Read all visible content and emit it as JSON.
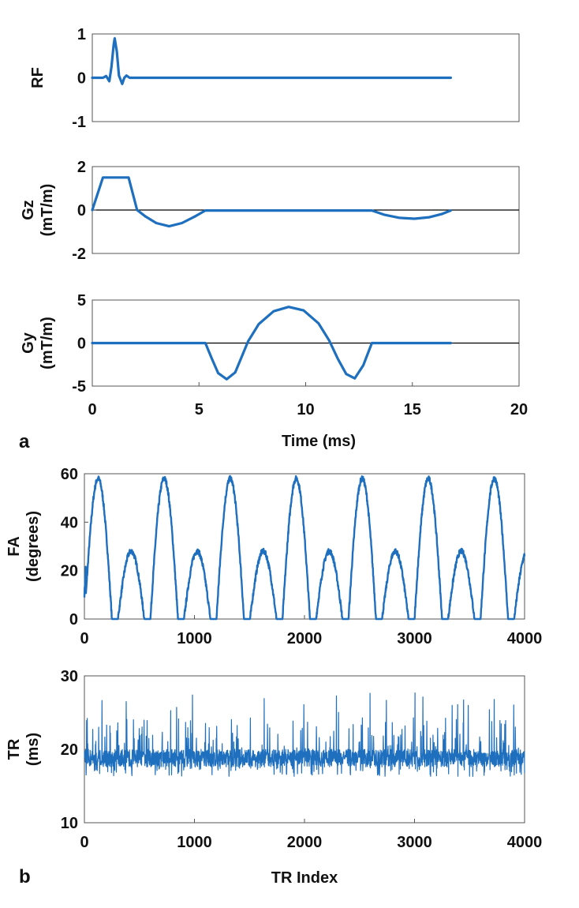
{
  "colors": {
    "series": "#1f6fbf",
    "axis": "#222222",
    "zero_line": "#000000"
  },
  "panel_labels": {
    "a": "a",
    "b": "b"
  },
  "chart_data": [
    {
      "id": "rf",
      "type": "line",
      "title": "",
      "ylabel": [
        "RF"
      ],
      "xlabel": "",
      "xlim": [
        0,
        20
      ],
      "ylim": [
        -1,
        1
      ],
      "yticks": [
        1,
        0,
        -1
      ],
      "ytick_labels": [
        "1",
        "0",
        "-1"
      ],
      "xtick_labels": [],
      "zero_line": false,
      "series": [
        {
          "name": "RF",
          "x": [
            0,
            0.5,
            0.65,
            0.8,
            0.9,
            1.0,
            1.05,
            1.15,
            1.25,
            1.4,
            1.5,
            1.6,
            1.75,
            1.9,
            16.8
          ],
          "y": [
            0,
            0,
            0.04,
            -0.08,
            0.25,
            0.75,
            0.9,
            0.6,
            0.05,
            -0.14,
            0.0,
            0.05,
            0.0,
            0.0,
            0.0
          ]
        }
      ]
    },
    {
      "id": "gz",
      "type": "line",
      "title": "",
      "ylabel": [
        "Gz",
        "(mT/m)"
      ],
      "xlabel": "",
      "xlim": [
        0,
        20
      ],
      "ylim": [
        -2,
        2
      ],
      "yticks": [
        2,
        0,
        -2
      ],
      "ytick_labels": [
        "2",
        "0",
        "-2"
      ],
      "xtick_labels": [],
      "zero_line": true,
      "series": [
        {
          "name": "Gz",
          "x": [
            0,
            0.5,
            1.7,
            2.1,
            2.5,
            3.0,
            3.6,
            4.2,
            4.8,
            5.3,
            13.1,
            13.7,
            14.4,
            15.1,
            15.8,
            16.4,
            16.8
          ],
          "y": [
            0,
            1.5,
            1.5,
            0,
            -0.3,
            -0.6,
            -0.75,
            -0.6,
            -0.3,
            -0.02,
            -0.02,
            -0.22,
            -0.36,
            -0.4,
            -0.33,
            -0.18,
            -0.02
          ]
        }
      ]
    },
    {
      "id": "gy",
      "type": "line",
      "title": "",
      "ylabel": [
        "Gy",
        "(mT/m)"
      ],
      "xlabel": "",
      "xlim": [
        0,
        20
      ],
      "ylim": [
        -5,
        5
      ],
      "yticks": [
        5,
        0,
        -5
      ],
      "ytick_labels": [
        "5",
        "0",
        "-5"
      ],
      "xticks": [
        0,
        5,
        10,
        15,
        20
      ],
      "xtick_labels": [
        "0",
        "5",
        "10",
        "15",
        "20"
      ],
      "zero_line": true,
      "series": [
        {
          "name": "Gy",
          "x": [
            0,
            5.3,
            5.6,
            5.9,
            6.3,
            6.7,
            7.0,
            7.3,
            7.8,
            8.5,
            9.2,
            9.9,
            10.6,
            11.1,
            11.5,
            11.9,
            12.3,
            12.7,
            13.1,
            16.8
          ],
          "y": [
            0,
            0,
            -1.8,
            -3.5,
            -4.2,
            -3.4,
            -1.6,
            0.2,
            2.2,
            3.7,
            4.2,
            3.8,
            2.3,
            0.3,
            -1.8,
            -3.6,
            -4.1,
            -2.6,
            0,
            0
          ]
        }
      ]
    },
    {
      "id": "fa",
      "type": "line",
      "title": "",
      "ylabel": [
        "FA",
        "(degrees)"
      ],
      "xlabel": "",
      "xlim": [
        0,
        4000
      ],
      "ylim": [
        0,
        60
      ],
      "yticks": [
        60,
        40,
        20,
        0
      ],
      "ytick_labels": [
        "60",
        "40",
        "20",
        "0"
      ],
      "xticks": [
        0,
        1000,
        2000,
        3000,
        4000
      ],
      "xtick_labels": [
        "0",
        "1000",
        "2000",
        "3000",
        "4000"
      ],
      "zero_line": false,
      "pattern": {
        "period": 600,
        "big_peak": 58,
        "small_peak": 28,
        "big_start": 0,
        "big_end": 250,
        "small_start": 305,
        "small_end": 545
      },
      "series": [
        {
          "name": "FA"
        }
      ]
    },
    {
      "id": "tr",
      "type": "line",
      "title": "",
      "ylabel": [
        "TR",
        "(ms)"
      ],
      "xlabel": "TR Index",
      "xlim": [
        0,
        4000
      ],
      "ylim": [
        10,
        30
      ],
      "yticks": [
        30,
        20,
        10
      ],
      "ytick_labels": [
        "30",
        "20",
        "10"
      ],
      "xticks": [
        0,
        1000,
        2000,
        3000,
        4000
      ],
      "xtick_labels": [
        "0",
        "1000",
        "2000",
        "3000",
        "4000"
      ],
      "zero_line": false,
      "noise": {
        "mean": 18.8,
        "min": 16.3,
        "max": 27.8,
        "n_points": 4000
      },
      "series": [
        {
          "name": "TR"
        }
      ]
    }
  ],
  "shared": {
    "time_xlabel": "Time (ms)"
  }
}
